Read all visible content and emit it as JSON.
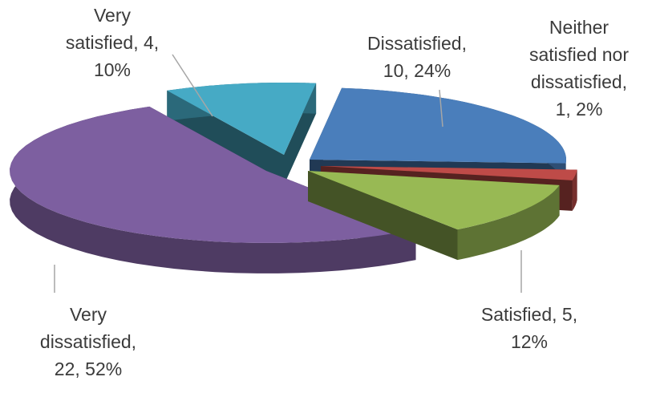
{
  "chart_data": {
    "type": "pie",
    "style": "3d-exploded",
    "title": "",
    "slices": [
      {
        "name": "Dissatisfied",
        "value": 10,
        "percent": "24%",
        "color": "#4a7ebb",
        "label_lines": [
          "Dissatisfied,",
          "10, 24%"
        ]
      },
      {
        "name": "Neither satisfied nor dissatisfied",
        "value": 1,
        "percent": "2%",
        "color": "#be4b48",
        "label_lines": [
          "Neither",
          "satisfied nor",
          "dissatisfied,",
          "1, 2%"
        ]
      },
      {
        "name": "Satisfied",
        "value": 5,
        "percent": "12%",
        "color": "#98b954",
        "label_lines": [
          "Satisfied, 5,",
          "12%"
        ]
      },
      {
        "name": "Very dissatisfied",
        "value": 22,
        "percent": "52%",
        "color": "#7d5fa0",
        "label_lines": [
          "Very",
          "dissatisfied,",
          "22, 52%"
        ]
      },
      {
        "name": "Very satisfied",
        "value": 4,
        "percent": "10%",
        "color": "#46aac5",
        "label_lines": [
          "Very",
          "satisfied, 4,",
          "10%"
        ]
      }
    ]
  }
}
